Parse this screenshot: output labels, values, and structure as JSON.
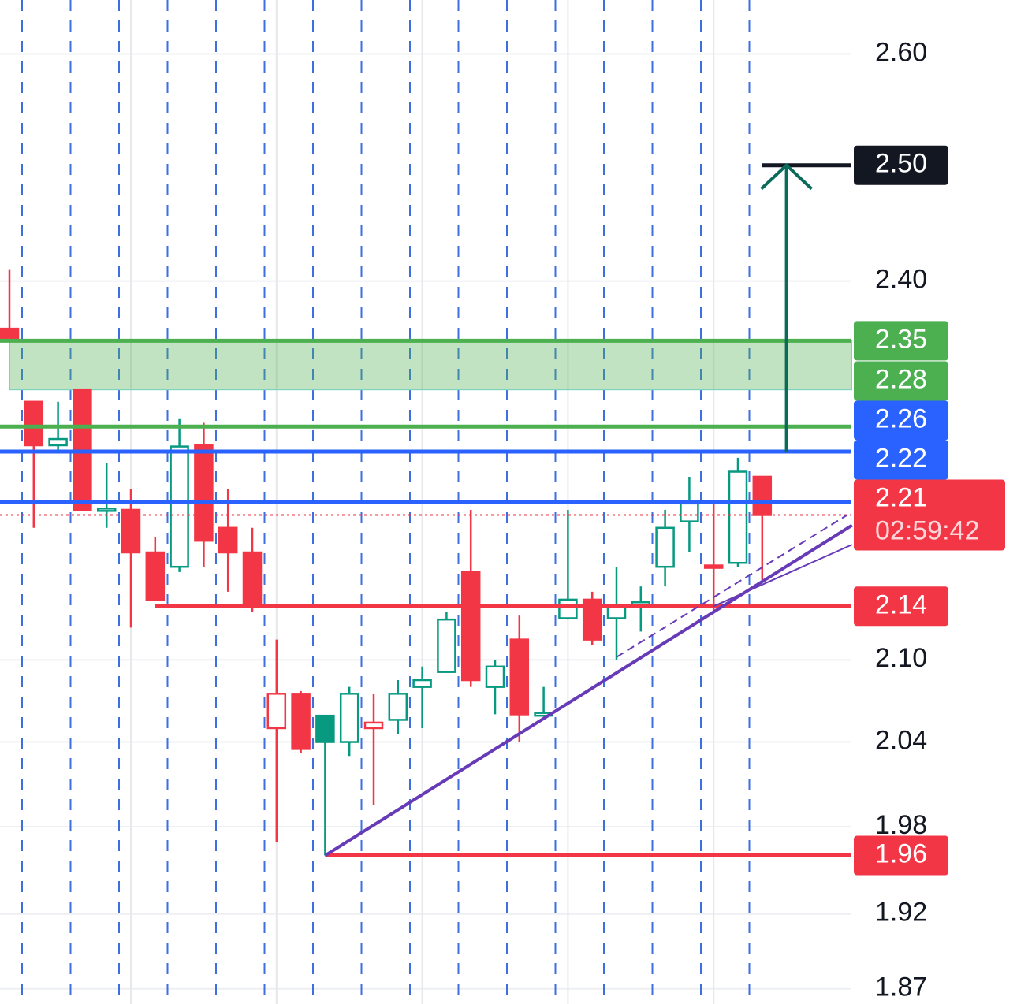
{
  "chart_data": {
    "type": "candlestick",
    "ylim": [
      1.86,
      2.65
    ],
    "log": true,
    "grid": true,
    "yticks": [
      {
        "value": 2.6,
        "label": "2.60"
      },
      {
        "value": 2.4,
        "label": "2.40"
      },
      {
        "value": 2.1,
        "label": "2.10"
      },
      2.04,
      1.98,
      1.92,
      1.87
    ],
    "up_color": "#089981",
    "down_color": "#f23645",
    "candles": {
      "open": [
        2.36,
        2.3,
        2.265,
        2.31,
        2.214,
        2.214,
        2.181,
        2.17,
        2.265,
        2.2,
        2.181,
        2.05,
        2.075,
        2.059,
        2.04,
        2.05,
        2.056,
        2.08,
        2.091,
        2.166,
        2.08,
        2.115,
        2.059,
        2.131,
        2.145,
        2.131,
        2.14,
        2.17,
        2.205,
        2.171,
        2.173,
        2.24
      ],
      "high": [
        2.41,
        2.3,
        2.3,
        2.31,
        2.251,
        2.23,
        2.193,
        2.286,
        2.283,
        2.23,
        2.2,
        2.115,
        2.077,
        2.059,
        2.08,
        2.075,
        2.085,
        2.095,
        2.136,
        2.214,
        2.1,
        2.133,
        2.08,
        2.214,
        2.151,
        2.17,
        2.155,
        2.214,
        2.24,
        2.219,
        2.255,
        2.24
      ],
      "low": [
        2.35,
        2.2,
        2.261,
        2.214,
        2.2,
        2.124,
        2.145,
        2.166,
        2.17,
        2.151,
        2.136,
        1.969,
        2.032,
        1.96,
        2.03,
        1.995,
        2.046,
        2.05,
        2.091,
        2.08,
        2.06,
        2.04,
        2.059,
        2.13,
        2.111,
        2.1,
        2.121,
        2.155,
        2.181,
        2.136,
        2.17,
        2.16
      ],
      "close": [
        2.35,
        2.265,
        2.27,
        2.214,
        2.215,
        2.181,
        2.145,
        2.264,
        2.19,
        2.181,
        2.14,
        2.075,
        2.035,
        2.04,
        2.075,
        2.054,
        2.075,
        2.085,
        2.13,
        2.085,
        2.095,
        2.06,
        2.061,
        2.145,
        2.115,
        2.14,
        2.143,
        2.2,
        2.219,
        2.17,
        2.244,
        2.21
      ]
    },
    "zone": {
      "top": 2.35,
      "bottom": 2.31,
      "from": 0,
      "color": "#4caf50"
    },
    "levels": [
      {
        "value": 2.5,
        "label": "2.50",
        "color": "#131722",
        "from": 31
      },
      {
        "value": 2.35,
        "label": "2.35",
        "color": "#4caf50"
      },
      {
        "value": 2.28,
        "label": "2.28",
        "color": "#4caf50"
      },
      {
        "value": 2.26,
        "label": "2.26",
        "color": "#2962ff"
      },
      {
        "value": 2.22,
        "label": "2.22",
        "color": "#2962ff"
      },
      {
        "value": 2.21,
        "label": "2.21",
        "color": "#f23645",
        "style": "dotted",
        "countdown": "02:59:42"
      },
      {
        "value": 2.14,
        "label": "2.14",
        "color": "#f23645",
        "from": 6
      },
      {
        "value": 1.96,
        "label": "1.96",
        "color": "#f23645",
        "from": 13
      }
    ],
    "arrow": {
      "at": 32,
      "from": 2.26,
      "to": 2.5,
      "color": "#0b6b5b"
    },
    "trendlines": [
      {
        "start": [
          13,
          1.96
        ],
        "end": [
          34.7,
          2.202
        ],
        "width": 4,
        "color": "#673ab7"
      },
      {
        "start": [
          25,
          2.102
        ],
        "end": [
          34.5,
          2.21
        ],
        "width": 2,
        "color": "#673ab7",
        "dashed": true
      },
      {
        "start": [
          29,
          2.14
        ],
        "end": [
          34.7,
          2.187
        ],
        "width": 2,
        "color": "#673ab7"
      }
    ]
  }
}
